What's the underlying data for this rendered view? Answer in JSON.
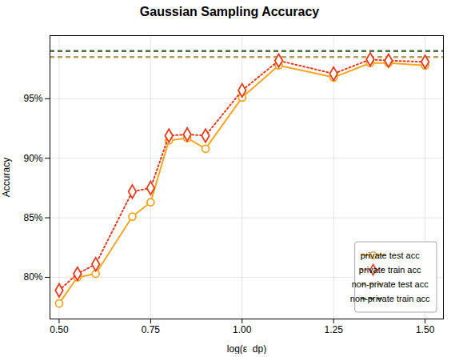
{
  "chart_data": {
    "type": "line",
    "title": "Gaussian Sampling Accuracy",
    "xlabel": "log(ε_dp)",
    "ylabel": "Accuracy",
    "x": [
      0.5,
      0.55,
      0.6,
      0.7,
      0.75,
      0.8,
      0.85,
      0.9,
      1.0,
      1.1,
      1.25,
      1.35,
      1.4,
      1.5
    ],
    "series": [
      {
        "name": "private test acc",
        "type": "line",
        "color": "#f5a623",
        "marker": "circle",
        "line_style": "solid",
        "values": [
          0.778,
          0.8,
          0.803,
          0.851,
          0.863,
          0.915,
          0.917,
          0.908,
          0.951,
          0.978,
          0.968,
          0.98,
          0.98,
          0.978
        ]
      },
      {
        "name": "private train acc",
        "type": "line",
        "color": "#e63b1f",
        "marker": "diamond",
        "line_style": "dotted",
        "values": [
          0.789,
          0.803,
          0.811,
          0.872,
          0.875,
          0.919,
          0.92,
          0.919,
          0.957,
          0.982,
          0.971,
          0.983,
          0.982,
          0.981
        ]
      },
      {
        "name": "non-private test acc",
        "type": "hline",
        "color": "#b8a060",
        "line_style": "dashed",
        "y": 0.985
      },
      {
        "name": "non-private train acc",
        "type": "hline",
        "color": "#4a7045",
        "line_style": "dashed",
        "y": 0.99
      }
    ],
    "xlim": [
      0.475,
      1.55
    ],
    "ylim": [
      0.765,
      1.003
    ],
    "xticks": [
      {
        "value": 0.5,
        "label": "0.50"
      },
      {
        "value": 0.75,
        "label": "0.75"
      },
      {
        "value": 1.0,
        "label": "1.00"
      },
      {
        "value": 1.25,
        "label": "1.25"
      },
      {
        "value": 1.5,
        "label": "1.50"
      }
    ],
    "yticks": [
      {
        "value": 0.8,
        "label": "80%"
      },
      {
        "value": 0.85,
        "label": "85%"
      },
      {
        "value": 0.9,
        "label": "90%"
      },
      {
        "value": 0.95,
        "label": "95%"
      }
    ],
    "grid": true,
    "legend": "lower right"
  }
}
